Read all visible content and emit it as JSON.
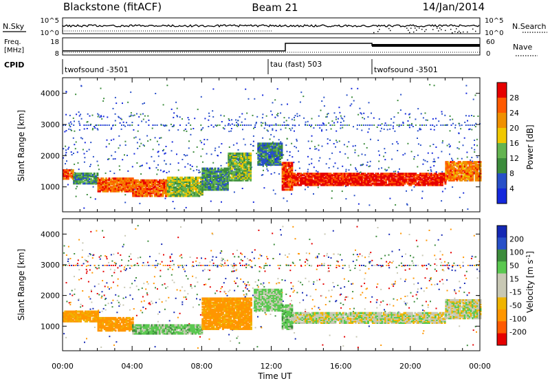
{
  "header": {
    "site": "Blackstone (fitACF)",
    "beam": "Beam 21",
    "date": "14/Jan/2014"
  },
  "top_panels": {
    "nsky": {
      "label": "N.Sky",
      "ticks": [
        "10^5",
        "10^0"
      ]
    },
    "nsearch": {
      "label": "N.Search",
      "ticks": [
        "10^5",
        "10^0"
      ]
    },
    "freq": {
      "label_line1": "Freq.",
      "label_line2": "[MHz]",
      "ticks": [
        "18",
        "8"
      ]
    },
    "nave": {
      "label": "Nave",
      "ticks": [
        "60",
        "0"
      ]
    },
    "cpid": {
      "label": "CPID",
      "segments": [
        {
          "name": "twofsound -3501",
          "start_h": 0.0
        },
        {
          "name": "tau (fast) 503",
          "start_h": 12.0
        },
        {
          "name": "twofsound -3501",
          "start_h": 18.0
        }
      ]
    }
  },
  "colors": {
    "power": [
      "#1428dc",
      "#2850c8",
      "#3c8c3c",
      "#64b450",
      "#f0c800",
      "#f09000",
      "#ff5a00",
      "#e60000"
    ],
    "velocity": [
      "#e60000",
      "#ff5a00",
      "#ff9600",
      "#f0b400",
      "#c8c8b4",
      "#c8c8b4",
      "#5ac850",
      "#3c8c3c",
      "#2850c8",
      "#1428b4"
    ]
  },
  "chart_data": [
    {
      "type": "heatmap",
      "name": "power",
      "xlabel": "",
      "ylabel": "Slant Range [km]",
      "xlim_hours": [
        0,
        24
      ],
      "ylim": [
        200,
        4500
      ],
      "yticks": [
        1000,
        2000,
        3000,
        4000
      ],
      "colorbar": {
        "label": "Power [dB]",
        "ticks": [
          "28",
          "24",
          "20",
          "16",
          "12",
          "8",
          "4"
        ],
        "range": [
          0,
          30
        ]
      },
      "bands": [
        {
          "t0": 0.0,
          "t1": 0.6,
          "r0": 1250,
          "r1": 1550,
          "value": 26
        },
        {
          "t0": 0.6,
          "t1": 2.0,
          "r0": 1100,
          "r1": 1450,
          "value": 10
        },
        {
          "t0": 2.0,
          "t1": 4.0,
          "r0": 850,
          "r1": 1300,
          "value": 24
        },
        {
          "t0": 4.0,
          "t1": 6.0,
          "r0": 700,
          "r1": 1200,
          "value": 24
        },
        {
          "t0": 6.0,
          "t1": 8.0,
          "r0": 700,
          "r1": 1300,
          "value": 14
        },
        {
          "t0": 8.0,
          "t1": 9.5,
          "r0": 900,
          "r1": 1600,
          "value": 10
        },
        {
          "t0": 9.5,
          "t1": 10.8,
          "r0": 1200,
          "r1": 2100,
          "value": 12
        },
        {
          "t0": 11.2,
          "t1": 12.6,
          "r0": 1700,
          "r1": 2400,
          "value": 8
        },
        {
          "t0": 12.6,
          "t1": 13.2,
          "r0": 900,
          "r1": 1800,
          "value": 26
        },
        {
          "t0": 13.2,
          "t1": 18.0,
          "r0": 1050,
          "r1": 1450,
          "value": 28
        },
        {
          "t0": 18.0,
          "t1": 22.0,
          "r0": 1050,
          "r1": 1450,
          "value": 28
        },
        {
          "t0": 22.0,
          "t1": 24.0,
          "r0": 1200,
          "r1": 1800,
          "value": 22
        }
      ]
    },
    {
      "type": "heatmap",
      "name": "velocity",
      "xlabel": "Time UT",
      "ylabel": "Slant Range [km]",
      "xlim_hours": [
        0,
        24
      ],
      "ylim": [
        200,
        4500
      ],
      "yticks": [
        1000,
        2000,
        3000,
        4000
      ],
      "xticks": [
        "00:00",
        "04:00",
        "08:00",
        "12:00",
        "16:00",
        "20:00",
        "00:00"
      ],
      "colorbar": {
        "label": "Velocity [m s",
        "label_sup": "-1",
        "label_end": "]",
        "ticks": [
          "200",
          "100",
          "50",
          "15",
          "-15",
          "-50",
          "-100",
          "-200"
        ],
        "range": [
          -250,
          250
        ]
      },
      "bands": [
        {
          "t0": 0.0,
          "t1": 2.0,
          "r0": 1150,
          "r1": 1500,
          "value": -60
        },
        {
          "t0": 2.0,
          "t1": 4.0,
          "r0": 850,
          "r1": 1300,
          "value": -70
        },
        {
          "t0": 4.0,
          "t1": 8.0,
          "r0": 750,
          "r1": 1050,
          "value": 30
        },
        {
          "t0": 8.0,
          "t1": 10.8,
          "r0": 900,
          "r1": 1900,
          "value": -70
        },
        {
          "t0": 11.0,
          "t1": 12.6,
          "r0": 1500,
          "r1": 2200,
          "value": 20
        },
        {
          "t0": 12.6,
          "t1": 13.2,
          "r0": 900,
          "r1": 1700,
          "value": 30
        },
        {
          "t0": 13.2,
          "t1": 22.0,
          "r0": 1100,
          "r1": 1450,
          "value": 0
        },
        {
          "t0": 22.0,
          "t1": 24.0,
          "r0": 1250,
          "r1": 1850,
          "value": 0
        }
      ]
    }
  ]
}
